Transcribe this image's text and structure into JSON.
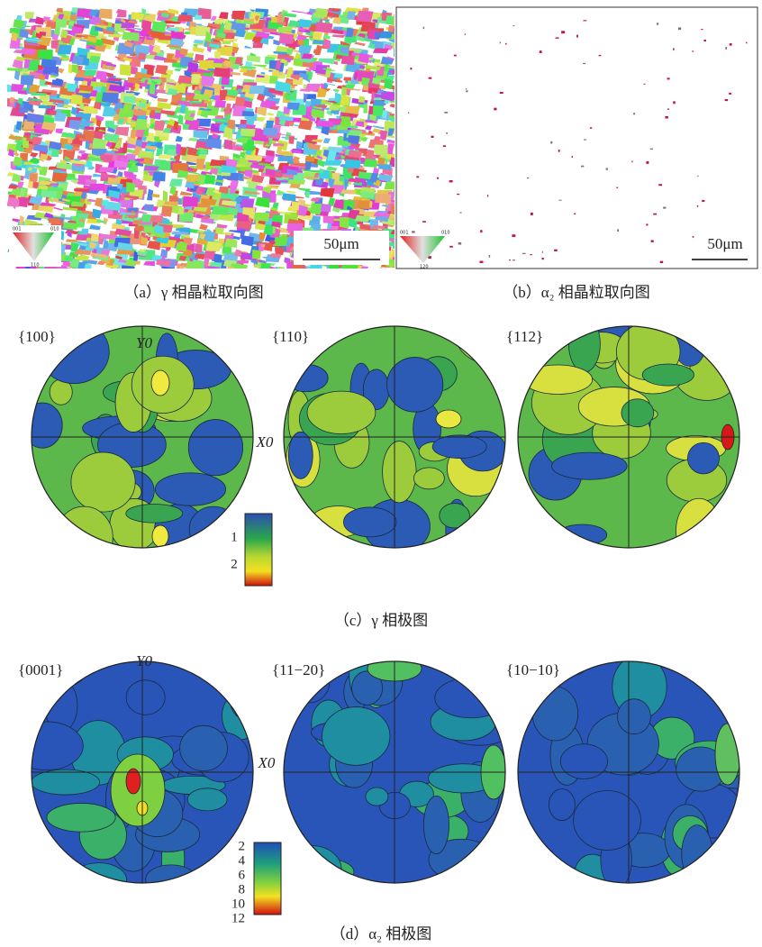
{
  "panel_a": {
    "caption": "（a）γ 相晶粒取向图",
    "scale_bar": "50μm",
    "ipf_labels": [
      "001",
      "010",
      "110"
    ]
  },
  "panel_b": {
    "caption": "（b）α₂ 相晶粒取向图",
    "scale_bar": "50μm",
    "ipf_labels": [
      "001",
      "010",
      "120"
    ]
  },
  "panel_c": {
    "caption": "（c）γ 相极图",
    "figures": [
      "{100}",
      "{110}",
      "{112}"
    ],
    "y_axis": "Y0",
    "x_axis": "X0",
    "legend_labels": [
      "1",
      "2"
    ]
  },
  "panel_d": {
    "caption": "（d）α₂ 相极图",
    "figures": [
      "{0001}",
      "{11−20}",
      "{10−10}"
    ],
    "y_axis": "Y0",
    "x_axis": "X0",
    "legend_labels": [
      "2",
      "4",
      "6",
      "8",
      "10",
      "12"
    ]
  }
}
